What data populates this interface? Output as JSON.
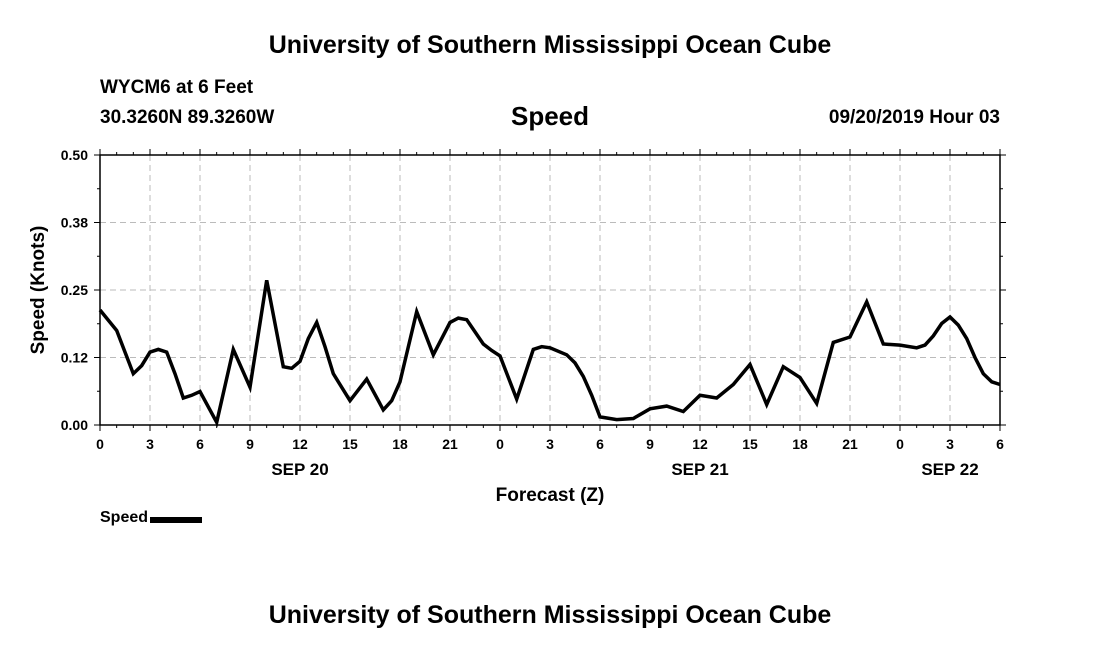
{
  "header": {
    "title": "University of Southern Mississippi Ocean Cube",
    "station": "WYCM6 at 6 Feet",
    "coordinates": "30.3260N 89.3260W",
    "chart_name": "Speed",
    "timestamp": "09/20/2019 Hour 03"
  },
  "footer": {
    "title": "University of Southern Mississippi Ocean Cube"
  },
  "legend": {
    "label": "Speed",
    "color": "#000000"
  },
  "chart_data": {
    "type": "line",
    "title": "Speed",
    "xlabel": "Forecast (Z)",
    "ylabel": "Speed (Knots)",
    "ylim": [
      0,
      0.5
    ],
    "xlim": [
      0,
      54
    ],
    "y_ticks": [
      0.0,
      0.125,
      0.25,
      0.375,
      0.5
    ],
    "y_tick_labels": [
      "0.00",
      "0.12",
      "0.25",
      "0.38",
      "0.50"
    ],
    "x_ticks": [
      0,
      3,
      6,
      9,
      12,
      15,
      18,
      21,
      24,
      27,
      30,
      33,
      36,
      39,
      42,
      45,
      48,
      51,
      54
    ],
    "x_tick_labels": [
      "0",
      "3",
      "6",
      "9",
      "12",
      "15",
      "18",
      "21",
      "0",
      "3",
      "6",
      "9",
      "12",
      "15",
      "18",
      "21",
      "0",
      "3",
      "6"
    ],
    "date_labels": [
      {
        "x": 12,
        "label": "SEP 20"
      },
      {
        "x": 36,
        "label": "SEP 21"
      },
      {
        "x": 51,
        "label": "SEP 22"
      }
    ],
    "grid": true,
    "series": [
      {
        "name": "Speed",
        "color": "#000000",
        "x": [
          0,
          1,
          1.5,
          2,
          2.5,
          3,
          3.5,
          4,
          4.5,
          5,
          5.5,
          6,
          7,
          8,
          9,
          10,
          11,
          11.5,
          12,
          12.5,
          13,
          13.5,
          14,
          15,
          16,
          17,
          17.5,
          18,
          19,
          20,
          21,
          21.5,
          22,
          23,
          23.5,
          24,
          25,
          26,
          26.5,
          27,
          28,
          28.5,
          29,
          29.5,
          30,
          31,
          32,
          33,
          34,
          35,
          36,
          37,
          38,
          39,
          40,
          41,
          42,
          43,
          44,
          45,
          46,
          47,
          48,
          49,
          49.5,
          50,
          50.5,
          51,
          51.5,
          52,
          52.5,
          53,
          53.5,
          54
        ],
        "values": [
          0.213,
          0.175,
          0.135,
          0.095,
          0.11,
          0.135,
          0.14,
          0.135,
          0.095,
          0.05,
          0.055,
          0.062,
          0.005,
          0.14,
          0.07,
          0.268,
          0.108,
          0.105,
          0.118,
          0.16,
          0.19,
          0.145,
          0.095,
          0.045,
          0.085,
          0.028,
          0.045,
          0.08,
          0.21,
          0.13,
          0.19,
          0.198,
          0.195,
          0.15,
          0.138,
          0.128,
          0.048,
          0.14,
          0.145,
          0.143,
          0.13,
          0.115,
          0.09,
          0.055,
          0.015,
          0.01,
          0.012,
          0.03,
          0.035,
          0.025,
          0.055,
          0.05,
          0.075,
          0.112,
          0.038,
          0.108,
          0.088,
          0.04,
          0.153,
          0.163,
          0.228,
          0.15,
          0.148,
          0.143,
          0.148,
          0.165,
          0.188,
          0.2,
          0.185,
          0.16,
          0.125,
          0.095,
          0.08,
          0.075
        ]
      }
    ]
  }
}
